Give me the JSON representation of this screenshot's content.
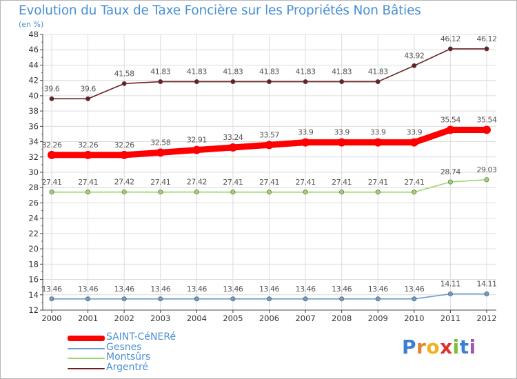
{
  "title": "Evolution du Taux de Taxe Foncière sur les Propriétés Non Bâties",
  "unit_label": "(en %)",
  "chart_data": {
    "type": "line",
    "title": "Evolution du Taux de Taxe Foncière sur les Propriétés Non Bâties",
    "ylabel": "(en %)",
    "xlabel": "",
    "x": [
      "2000",
      "2001",
      "2002",
      "2003",
      "2004",
      "2005",
      "2006",
      "2007",
      "2008",
      "2009",
      "2010",
      "2011",
      "2012"
    ],
    "ylim": [
      12,
      48
    ],
    "yticks": [
      12,
      14,
      16,
      18,
      20,
      22,
      24,
      26,
      28,
      30,
      32,
      34,
      36,
      38,
      40,
      42,
      44,
      46,
      48
    ],
    "grid": true,
    "legend_position": "bottom-left",
    "series": [
      {
        "name": "SAINT-CéNERé",
        "color": "#ff0000",
        "width": 9,
        "values": [
          32.26,
          32.26,
          32.26,
          32.58,
          32.91,
          33.24,
          33.57,
          33.9,
          33.9,
          33.9,
          33.9,
          35.54,
          35.54
        ],
        "labels": [
          "32.26",
          "32.26",
          "32.26",
          "32.58",
          "32.91",
          "33.24",
          "33.57",
          "33.9",
          "33.9",
          "33.9",
          "33.9",
          "35.54",
          "35.54"
        ]
      },
      {
        "name": "Gesnes",
        "color": "#6b9bc8",
        "width": 1.6,
        "values": [
          13.46,
          13.46,
          13.46,
          13.46,
          13.46,
          13.46,
          13.46,
          13.46,
          13.46,
          13.46,
          13.46,
          14.11,
          14.11
        ],
        "labels": [
          "13.46",
          "13.46",
          "13.46",
          "13.46",
          "13.46",
          "13.46",
          "13.46",
          "13.46",
          "13.46",
          "13.46",
          "13.46",
          "14.11",
          "14.11"
        ]
      },
      {
        "name": "Montsûrs",
        "color": "#9bd66b",
        "width": 1.6,
        "values": [
          27.41,
          27.41,
          27.42,
          27.41,
          27.42,
          27.41,
          27.41,
          27.41,
          27.41,
          27.41,
          27.41,
          28.74,
          29.03
        ],
        "labels": [
          "27.41",
          "27.41",
          "27.42",
          "27.41",
          "27.42",
          "27.41",
          "27.41",
          "27.41",
          "27.41",
          "27.41",
          "27.41",
          "28.74",
          "29.03"
        ]
      },
      {
        "name": "Argentré",
        "color": "#6b1f25",
        "width": 1.6,
        "values": [
          39.6,
          39.6,
          41.58,
          41.83,
          41.83,
          41.83,
          41.83,
          41.83,
          41.83,
          41.83,
          43.92,
          46.12,
          46.12
        ],
        "labels": [
          "39.6",
          "39.6",
          "41.58",
          "41.83",
          "41.83",
          "41.83",
          "41.83",
          "41.83",
          "41.83",
          "41.83",
          "43.92",
          "46.12",
          "46.12"
        ]
      }
    ]
  },
  "legend": [
    {
      "label": "SAINT-CéNERé",
      "color": "#ff0000"
    },
    {
      "label": "Gesnes",
      "color": "#6b9bc8"
    },
    {
      "label": "Montsûrs",
      "color": "#9bd66b"
    },
    {
      "label": "Argentré",
      "color": "#6b1f25"
    }
  ],
  "logo": {
    "letters": [
      "P",
      "r",
      "o",
      "x",
      "i",
      "t",
      "i"
    ],
    "colors": [
      "#3b7fd4",
      "#e8822a",
      "#f2b01e",
      "#e0302a",
      "#7cbf3a",
      "#3b7fd4",
      "#9b59b6"
    ]
  }
}
